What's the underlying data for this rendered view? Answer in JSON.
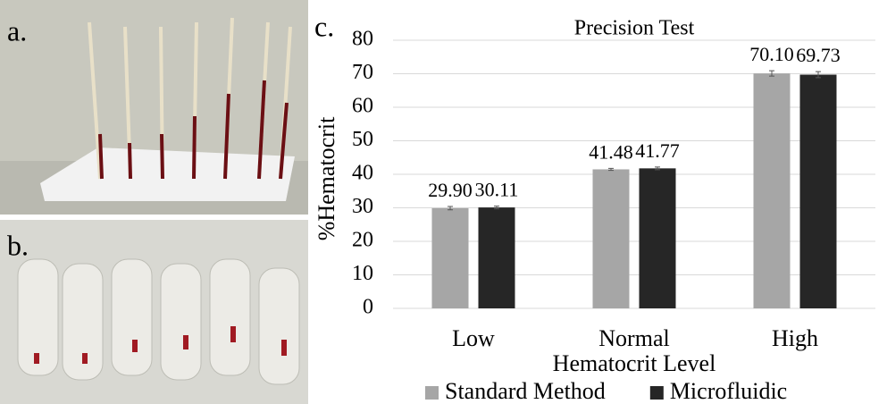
{
  "panels": {
    "a": "a.",
    "b": "b.",
    "c": "c."
  },
  "chart_data": {
    "type": "bar",
    "title": "Precision Test",
    "x_label": "Hematocrit Level",
    "y_label": "%Hematocrit",
    "categories": [
      "Low",
      "Normal",
      "High"
    ],
    "series": [
      {
        "name": "Standard Method",
        "color": "#a6a6a6",
        "values": [
          29.9,
          41.48,
          70.1
        ],
        "value_labels": [
          "29.90",
          "41.48",
          "70.10"
        ],
        "errors": [
          0.5,
          0.3,
          0.8
        ]
      },
      {
        "name": "Microfluidic",
        "color": "#262626",
        "values": [
          30.11,
          41.77,
          69.73
        ],
        "value_labels": [
          "30.11",
          "41.77",
          "69.73"
        ],
        "errors": [
          0.4,
          0.4,
          0.9
        ]
      }
    ],
    "ylim": [
      0,
      80
    ],
    "yticks": [
      0,
      10,
      20,
      30,
      40,
      50,
      60,
      70,
      80
    ],
    "grid": true,
    "legend": "bottom"
  }
}
